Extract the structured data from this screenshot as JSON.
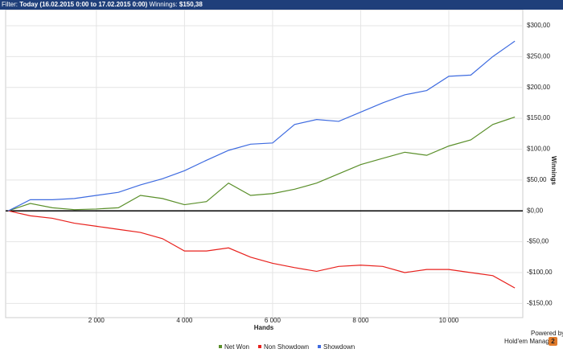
{
  "header": {
    "filter_label": "Filter:",
    "filter_value": "Today (16.02.2015 0:00 to 17.02.2015 0:00)",
    "winnings_label": "Winnings:",
    "winnings_value": "$150,38"
  },
  "branding": {
    "powered": "Powered by",
    "product": "Hold'em Manager",
    "version": "2"
  },
  "chart_data": {
    "type": "line",
    "x_label": "Hands",
    "y_label": "Winnings",
    "x": [
      0,
      500,
      1000,
      1500,
      2000,
      2500,
      3000,
      3500,
      4000,
      4500,
      5000,
      5500,
      6000,
      6500,
      7000,
      7500,
      8000,
      8500,
      9000,
      9500,
      10000,
      10500,
      11000,
      11500
    ],
    "series": [
      {
        "name": "Net Won",
        "color": "#5a8f2a",
        "values": [
          0,
          12,
          5,
          2,
          3,
          5,
          25,
          20,
          10,
          15,
          45,
          25,
          28,
          35,
          45,
          60,
          75,
          85,
          95,
          90,
          105,
          115,
          140,
          152
        ]
      },
      {
        "name": "Non Showdown",
        "color": "#e8201c",
        "values": [
          0,
          -8,
          -12,
          -20,
          -25,
          -30,
          -35,
          -45,
          -65,
          -65,
          -60,
          -75,
          -85,
          -92,
          -98,
          -90,
          -88,
          -90,
          -100,
          -95,
          -95,
          -100,
          -105,
          -125
        ]
      },
      {
        "name": "Showdown",
        "color": "#3e6be0",
        "values": [
          0,
          18,
          18,
          20,
          25,
          30,
          42,
          52,
          65,
          82,
          98,
          108,
          110,
          140,
          148,
          145,
          160,
          175,
          188,
          195,
          218,
          220,
          250,
          275
        ]
      }
    ],
    "xlim": [
      -60,
      11680
    ],
    "ylim": [
      -173,
      326
    ],
    "xticks": [
      {
        "value": 2000,
        "label": "2 000"
      },
      {
        "value": 4000,
        "label": "4 000"
      },
      {
        "value": 6000,
        "label": "6 000"
      },
      {
        "value": 8000,
        "label": "8 000"
      },
      {
        "value": 10000,
        "label": "10 000"
      }
    ],
    "yticks": [
      {
        "value": -150,
        "label": "-$150,00"
      },
      {
        "value": -100,
        "label": "-$100,00"
      },
      {
        "value": -50,
        "label": "-$50,00"
      },
      {
        "value": 0,
        "label": "$0,00"
      },
      {
        "value": 50,
        "label": "$50,00"
      },
      {
        "value": 100,
        "label": "$100,00"
      },
      {
        "value": 150,
        "label": "$150,00"
      },
      {
        "value": 200,
        "label": "$200,00"
      },
      {
        "value": 250,
        "label": "$250,00"
      },
      {
        "value": 300,
        "label": "$300,00"
      }
    ],
    "grid": true,
    "legend": "bottom"
  }
}
